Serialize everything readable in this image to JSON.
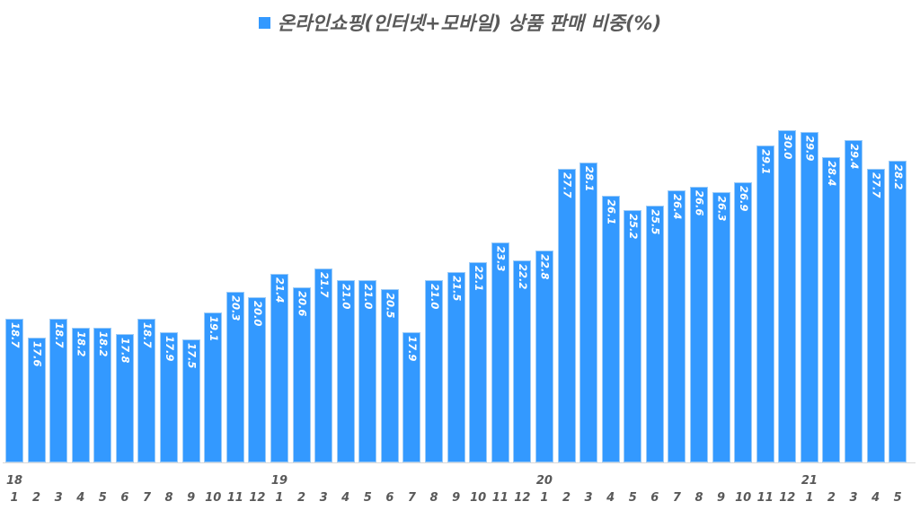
{
  "title": "온라인쇼핑(인터넷+모바일) 상품 판매 비중(%)",
  "colors": {
    "bar": "#3399ff",
    "label": "#ffffff",
    "axis_text": "#595959",
    "baseline": "#d9d9d9"
  },
  "chart_data": {
    "type": "bar",
    "title": "온라인쇼핑(인터넷+모바일) 상품 판매 비중(%)",
    "legend": [
      "온라인쇼핑(인터넷+모바일) 상품 판매 비중(%)"
    ],
    "legend_position": "top",
    "xlabel": "",
    "ylabel": "",
    "grid": false,
    "ylim": [
      10,
      32
    ],
    "year_labels": [
      {
        "index": 0,
        "label": "18"
      },
      {
        "index": 12,
        "label": "19"
      },
      {
        "index": 24,
        "label": "20"
      },
      {
        "index": 36,
        "label": "21"
      }
    ],
    "categories": [
      "1",
      "2",
      "3",
      "4",
      "5",
      "6",
      "7",
      "8",
      "9",
      "10",
      "11",
      "12",
      "1",
      "2",
      "3",
      "4",
      "5",
      "6",
      "7",
      "8",
      "9",
      "10",
      "11",
      "12",
      "1",
      "2",
      "3",
      "4",
      "5",
      "6",
      "7",
      "8",
      "9",
      "10",
      "11",
      "12",
      "1",
      "2",
      "3",
      "4",
      "5"
    ],
    "values": [
      18.7,
      17.6,
      18.7,
      18.2,
      18.2,
      17.8,
      18.7,
      17.9,
      17.5,
      19.1,
      20.3,
      20.0,
      21.4,
      20.6,
      21.7,
      21.0,
      21.0,
      20.5,
      17.9,
      21.0,
      21.5,
      22.1,
      23.3,
      22.2,
      22.8,
      27.7,
      28.1,
      26.1,
      25.2,
      25.5,
      26.4,
      26.6,
      26.3,
      26.9,
      29.1,
      30.0,
      29.9,
      28.4,
      29.4,
      27.7,
      28.2
    ],
    "value_labels": [
      "18.7",
      "17.6",
      "18.7",
      "18.2",
      "18.2",
      "17.8",
      "18.7",
      "17.9",
      "17.5",
      "19.1",
      "20.3",
      "20.0",
      "21.4",
      "20.6",
      "21.7",
      "21.0",
      "21.0",
      "20.5",
      "17.9",
      "21.0",
      "21.5",
      "22.1",
      "23.3",
      "22.2",
      "22.8",
      "27.7",
      "28.1",
      "26.1",
      "25.2",
      "25.5",
      "26.4",
      "26.6",
      "26.3",
      "26.9",
      "29.1",
      "30.0",
      "29.9",
      "28.4",
      "29.4",
      "27.7",
      "28.2"
    ]
  }
}
